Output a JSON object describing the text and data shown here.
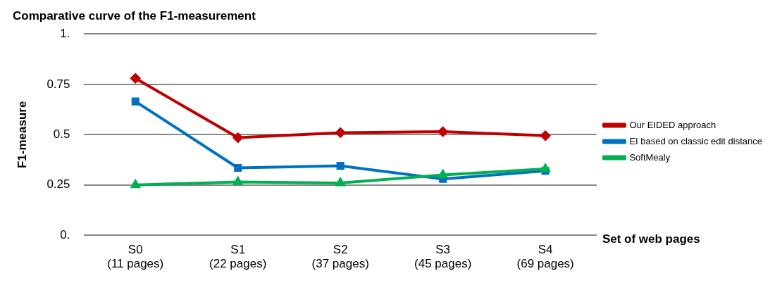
{
  "chart_data": {
    "type": "line",
    "title": "Comparative curve of the F1-measurement",
    "xlabel": "Set of web pages",
    "ylabel": "F1-measure",
    "categories": [
      "S0\n(11 pages)",
      "S1\n(22 pages)",
      "S2\n(37 pages)",
      "S3\n(45 pages)",
      "S4\n(69 pages)"
    ],
    "series": [
      {
        "name": "Our EIDED approach",
        "color": "#c00000",
        "marker": "diamond",
        "values": [
          0.78,
          0.485,
          0.51,
          0.515,
          0.495
        ]
      },
      {
        "name": "EI based on classic edit distance",
        "color": "#0070c0",
        "marker": "square",
        "values": [
          0.665,
          0.335,
          0.345,
          0.28,
          0.32
        ]
      },
      {
        "name": "SoftMealy",
        "color": "#00b050",
        "marker": "triangle",
        "values": [
          0.25,
          0.265,
          0.26,
          0.3,
          0.33
        ]
      }
    ],
    "ylim": [
      0,
      1
    ],
    "yticks": [
      {
        "value": 0,
        "label": "0."
      },
      0.25,
      0.5,
      0.75,
      {
        "value": 1,
        "label": "1."
      }
    ],
    "grid": "y",
    "legend": "right",
    "line_style": "solid"
  }
}
